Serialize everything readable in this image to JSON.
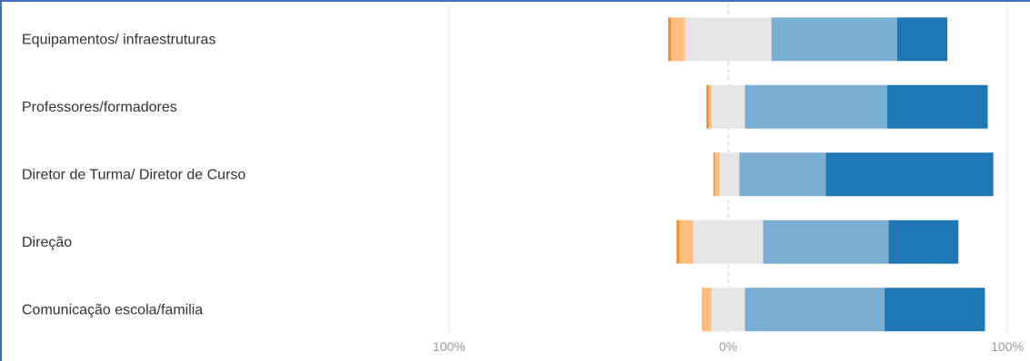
{
  "chart_data": {
    "type": "bar",
    "orientation": "horizontal-diverging-stacked",
    "categories": [
      "Equipamentos/ infraestruturas",
      "Professores/formadores",
      "Diretor de Turma/ Diretor de Curso",
      "Direção",
      "Comunicação escola/familia"
    ],
    "series": [
      {
        "color": "#f28e2b",
        "values": [
          -1,
          -0.8,
          -0.5,
          -1,
          -0.3
        ]
      },
      {
        "color": "#ffbe7d",
        "values": [
          -5,
          -1,
          -1.8,
          -5,
          -3
        ]
      },
      {
        "color": "#e6e6e6",
        "values": [
          31,
          12,
          7,
          25,
          12
        ]
      },
      {
        "color": "#7aaed3",
        "values": [
          45,
          51,
          31,
          45,
          50
        ]
      },
      {
        "color": "#1f77b4",
        "values": [
          18,
          36,
          60,
          25,
          36
        ]
      }
    ],
    "xlim": [
      -100,
      100
    ],
    "ticks": [
      {
        "value": -100,
        "label": "100%"
      },
      {
        "value": 0,
        "label": "0%"
      },
      {
        "value": 100,
        "label": "100%"
      }
    ],
    "neutral_offset": [
      -15.5,
      -6,
      -3,
      -12.5,
      -6
    ],
    "zero_line": "dashed",
    "grid": true,
    "legend": "none",
    "title": "",
    "xlabel": "",
    "ylabel": ""
  }
}
